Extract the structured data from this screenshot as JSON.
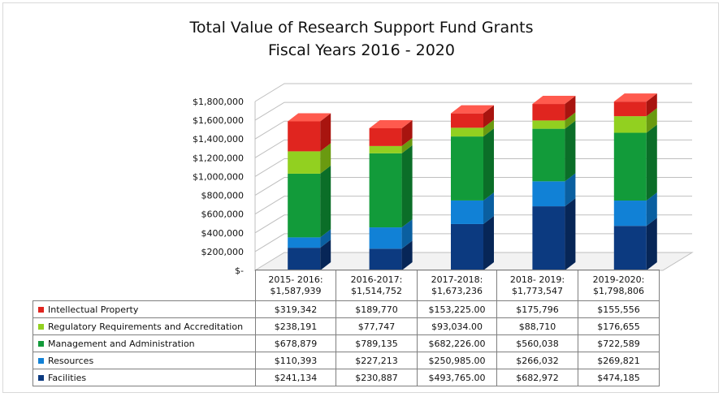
{
  "chart_data": {
    "type": "bar",
    "stacked": true,
    "three_d": true,
    "title": "Total Value of Research Support Fund Grants",
    "subtitle": "Fiscal Years 2016 - 2020",
    "categories": [
      {
        "year": "2015- 2016:",
        "total": "$1,587,939"
      },
      {
        "year": "2016-2017:",
        "total": "$1,514,752"
      },
      {
        "year": "2017-2018:",
        "total": "$1,673,236"
      },
      {
        "year": "2018- 2019:",
        "total": "$1,773,547"
      },
      {
        "year": "2019-2020:",
        "total": "$1,798,806"
      }
    ],
    "y_ticks": [
      "$-",
      "$200,000",
      "$400,000",
      "$600,000",
      "$800,000",
      "$1,000,000",
      "$1,200,000",
      "$1,400,000",
      "$1,600,000",
      "$1,800,000"
    ],
    "ylim": [
      0,
      1800000
    ],
    "grid": true,
    "legend": "data-table",
    "series": [
      {
        "name": "Intellectual Property",
        "color": "#e0251f",
        "side": "#a8140f",
        "top": "#ff5a4e",
        "values": [
          319342,
          189770,
          153225,
          175796,
          155556
        ],
        "labels": [
          "$319,342",
          "$189,770",
          "$153,225.00",
          "$175,796",
          "$155,556"
        ]
      },
      {
        "name": "Regulatory Requirements and Accreditation",
        "color": "#92d020",
        "side": "#6a9a10",
        "top": "#b5ec4a",
        "values": [
          238191,
          77747,
          93034,
          88710,
          176655
        ],
        "labels": [
          "$238,191",
          "$77,747",
          "$93,034.00",
          "$88,710",
          "$176,655"
        ]
      },
      {
        "name": "Management and Administration",
        "color": "#129b3a",
        "side": "#0b6e28",
        "top": "#34c25c",
        "values": [
          678879,
          789135,
          682226,
          560038,
          722589
        ],
        "labels": [
          "$678,879",
          "$789,135",
          "$682,226.00",
          "$560,038",
          "$722,589"
        ]
      },
      {
        "name": "Resources",
        "color": "#1181d6",
        "side": "#0a5fa0",
        "top": "#3fa4f0",
        "values": [
          110393,
          227213,
          250985,
          266032,
          269821
        ],
        "labels": [
          "$110,393",
          "$227,213",
          "$250,985.00",
          "$266,032",
          "$269,821"
        ]
      },
      {
        "name": "Facilities",
        "color": "#0c3a80",
        "side": "#072657",
        "top": "#2257a8",
        "values": [
          241134,
          230887,
          493765,
          682972,
          474185
        ],
        "labels": [
          "$241,134",
          "$230,887",
          "$493,765.00",
          "$682,972",
          "$474,185"
        ]
      }
    ]
  }
}
